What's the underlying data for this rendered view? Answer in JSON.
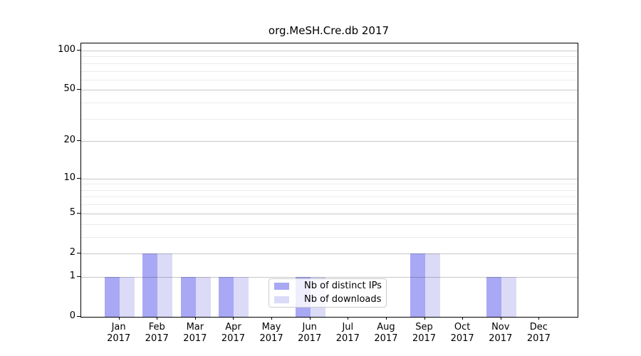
{
  "chart_data": {
    "type": "bar",
    "title": "org.MeSH.Cre.db 2017",
    "categories": [
      "Jan",
      "Feb",
      "Mar",
      "Apr",
      "May",
      "Jun",
      "Jul",
      "Aug",
      "Sep",
      "Oct",
      "Nov",
      "Dec"
    ],
    "year": "2017",
    "series": [
      {
        "name": "Nb of distinct IPs",
        "color": "#a8a8f4",
        "values": [
          1,
          2,
          1,
          1,
          0,
          1,
          0,
          0,
          2,
          0,
          1,
          0
        ]
      },
      {
        "name": "Nb of downloads",
        "color": "#dbdbf8",
        "values": [
          1,
          2,
          1,
          1,
          0,
          1,
          0,
          0,
          2,
          0,
          1,
          0
        ]
      }
    ],
    "xlabel": "",
    "ylabel": "",
    "y_scale": "log10(value+1)",
    "y_major_ticks": [
      0,
      1,
      2,
      5,
      10,
      20,
      50,
      100
    ],
    "y_minor_gridlines": [
      3,
      4,
      6,
      7,
      8,
      9,
      30,
      40,
      60,
      70,
      80,
      90
    ],
    "ylim": [
      0,
      113
    ],
    "grid": true,
    "legend_position": "inside-bottom-center"
  },
  "colors": {
    "major_grid": "rgba(0,0,0,0.22)",
    "minor_grid": "rgba(0,0,0,0.08)",
    "spine": "#000000",
    "background": "#ffffff"
  }
}
